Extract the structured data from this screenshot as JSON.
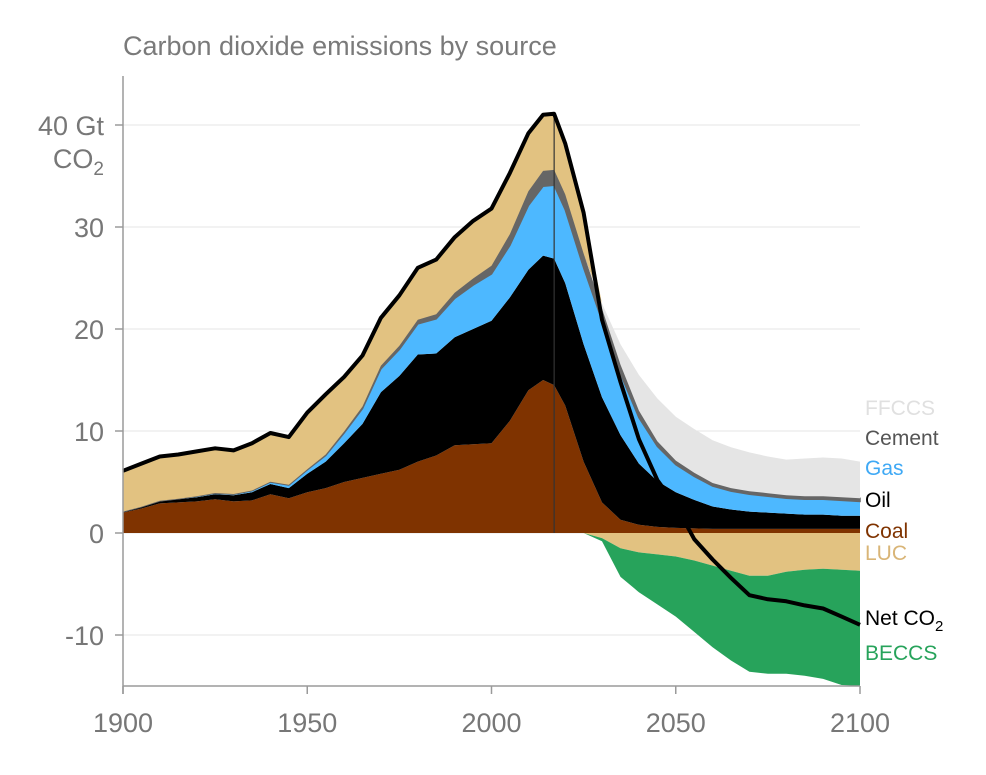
{
  "chart_data": {
    "type": "area",
    "title": "Carbon dioxide emissions by source",
    "ylabel_line1": "40 Gt",
    "ylabel_line2": "CO",
    "ylabel_sub": "2",
    "xlim": [
      1900,
      2100
    ],
    "ylim": [
      -15,
      45
    ],
    "x_ticks": [
      1900,
      1950,
      2000,
      2050,
      2100
    ],
    "x_tick_labels": [
      "1900",
      "1950",
      "2000",
      "2050",
      "2100"
    ],
    "y_ticks": [
      -10,
      0,
      10,
      20,
      30,
      40
    ],
    "y_tick_labels": [
      "-10",
      "0",
      "10",
      "20",
      "30"
    ],
    "grid": true,
    "marker_year": 2017,
    "legend_placement": "right",
    "x": [
      1900,
      1905,
      1910,
      1915,
      1920,
      1925,
      1930,
      1935,
      1940,
      1945,
      1950,
      1955,
      1960,
      1965,
      1970,
      1975,
      1980,
      1985,
      1990,
      1995,
      2000,
      2005,
      2010,
      2014,
      2017,
      2020,
      2025,
      2030,
      2035,
      2040,
      2045,
      2050,
      2055,
      2060,
      2065,
      2070,
      2075,
      2080,
      2085,
      2090,
      2095,
      2100
    ],
    "series": [
      {
        "name": "Coal",
        "color": "#7f3300",
        "values": [
          2.0,
          2.4,
          2.9,
          3.0,
          3.1,
          3.3,
          3.1,
          3.2,
          3.8,
          3.4,
          4.0,
          4.4,
          5.0,
          5.4,
          5.8,
          6.2,
          7.0,
          7.6,
          8.6,
          8.7,
          8.8,
          11.0,
          14.0,
          15.0,
          14.5,
          12.5,
          7.0,
          3.0,
          1.3,
          0.8,
          0.6,
          0.5,
          0.45,
          0.4,
          0.4,
          0.4,
          0.4,
          0.4,
          0.4,
          0.4,
          0.4,
          0.4
        ]
      },
      {
        "name": "Oil",
        "color": "#000000",
        "values": [
          0.1,
          0.15,
          0.2,
          0.3,
          0.4,
          0.5,
          0.6,
          0.8,
          1.0,
          1.0,
          1.8,
          2.6,
          3.8,
          5.3,
          8.0,
          9.2,
          10.5,
          10.0,
          10.6,
          11.3,
          12.0,
          12.1,
          11.8,
          12.2,
          12.4,
          12.0,
          11.5,
          10.3,
          8.3,
          6.0,
          4.5,
          3.5,
          2.8,
          2.2,
          1.9,
          1.7,
          1.6,
          1.5,
          1.4,
          1.4,
          1.3,
          1.3
        ]
      },
      {
        "name": "Gas",
        "color": "#4db8ff",
        "values": [
          0.0,
          0.02,
          0.05,
          0.05,
          0.1,
          0.1,
          0.1,
          0.15,
          0.2,
          0.3,
          0.4,
          0.6,
          1.0,
          1.5,
          2.3,
          2.6,
          3.0,
          3.4,
          3.8,
          4.3,
          4.6,
          5.1,
          6.3,
          6.8,
          7.2,
          7.2,
          7.5,
          7.5,
          6.0,
          4.5,
          3.4,
          2.7,
          2.3,
          2.0,
          1.8,
          1.7,
          1.6,
          1.5,
          1.5,
          1.5,
          1.5,
          1.4
        ]
      },
      {
        "name": "Cement",
        "color": "#666666",
        "values": [
          0.0,
          0.0,
          0.01,
          0.01,
          0.01,
          0.02,
          0.02,
          0.02,
          0.03,
          0.03,
          0.05,
          0.1,
          0.15,
          0.2,
          0.3,
          0.35,
          0.4,
          0.45,
          0.55,
          0.65,
          0.8,
          1.1,
          1.4,
          1.5,
          1.5,
          1.5,
          1.4,
          1.2,
          0.9,
          0.7,
          0.5,
          0.4,
          0.35,
          0.3,
          0.3,
          0.3,
          0.3,
          0.3,
          0.3,
          0.3,
          0.3,
          0.3
        ]
      },
      {
        "name": "FFCCS",
        "color": "#e5e5e5",
        "values": [
          0,
          0,
          0,
          0,
          0,
          0,
          0,
          0,
          0,
          0,
          0,
          0,
          0,
          0,
          0,
          0,
          0,
          0,
          0,
          0,
          0,
          0,
          0,
          0,
          0,
          0,
          0,
          0.5,
          2.0,
          3.5,
          4.2,
          4.3,
          4.3,
          4.2,
          4.0,
          3.8,
          3.6,
          3.5,
          3.7,
          3.8,
          3.8,
          3.6
        ]
      },
      {
        "name": "LUC",
        "color": "#e2c281",
        "values": [
          4.0,
          4.2,
          4.3,
          4.3,
          4.3,
          4.4,
          4.3,
          4.5,
          4.7,
          4.6,
          5.5,
          5.8,
          5.3,
          5.0,
          4.8,
          4.9,
          5.0,
          5.3,
          5.4,
          5.6,
          5.6,
          6.0,
          5.7,
          5.5,
          5.5,
          5.0,
          4.0,
          -0.5,
          -1.5,
          -1.9,
          -2.1,
          -2.3,
          -2.7,
          -3.2,
          -3.7,
          -4.2,
          -4.2,
          -3.8,
          -3.6,
          -3.5,
          -3.6,
          -3.7
        ]
      },
      {
        "name": "BECCS",
        "color": "#27a35b",
        "values": [
          0,
          0,
          0,
          0,
          0,
          0,
          0,
          0,
          0,
          0,
          0,
          0,
          0,
          0,
          0,
          0,
          0,
          0,
          0,
          0,
          0,
          0,
          0,
          0,
          0,
          0,
          0,
          -0.3,
          -2.8,
          -3.9,
          -4.9,
          -5.9,
          -7.0,
          -8.0,
          -8.8,
          -9.4,
          -9.6,
          -10.0,
          -10.4,
          -10.8,
          -11.3,
          -11.6
        ]
      }
    ],
    "net": {
      "name": "Net CO",
      "name_sub": "2",
      "color": "#000000",
      "values": [
        6.1,
        6.8,
        7.5,
        7.7,
        8.0,
        8.3,
        8.1,
        8.8,
        9.8,
        9.4,
        11.8,
        13.6,
        15.3,
        17.4,
        21.1,
        23.3,
        26.0,
        26.8,
        29.0,
        30.6,
        31.8,
        35.3,
        39.2,
        41.0,
        41.1,
        38.2,
        31.4,
        20.9,
        14.8,
        9.2,
        5.2,
        2.7,
        -0.6,
        -2.6,
        -4.4,
        -6.1,
        -6.5,
        -6.7,
        -7.1,
        -7.4,
        -8.2,
        -9.0
      ]
    },
    "legend": [
      {
        "label": "FFCCS",
        "color": "#e0e0e0"
      },
      {
        "label": "Cement",
        "color": "#555555"
      },
      {
        "label": "Gas",
        "color": "#3fa9f5"
      },
      {
        "label": "Oil",
        "color": "#000000"
      },
      {
        "label": "Coal",
        "color": "#7f3300"
      },
      {
        "label": "LUC",
        "color": "#d9b577"
      },
      {
        "label": "Net CO",
        "sub": "2",
        "color": "#000000"
      },
      {
        "label": "BECCS",
        "color": "#27a35b"
      }
    ]
  }
}
